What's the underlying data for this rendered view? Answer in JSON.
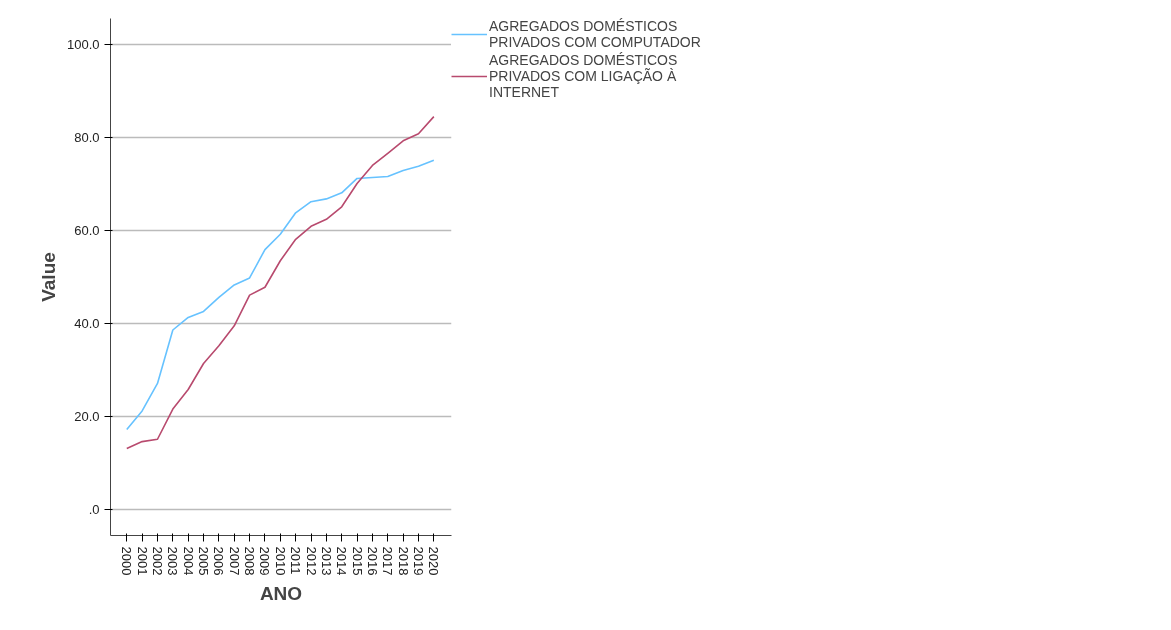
{
  "chart_data": {
    "type": "line",
    "xlabel": "ANO",
    "ylabel": "Value",
    "categories": [
      "2000",
      "2001",
      "2002",
      "2003",
      "2004",
      "2005",
      "2006",
      "2007",
      "2008",
      "2009",
      "2010",
      "2011",
      "2012",
      "2013",
      "2014",
      "2015",
      "2016",
      "2017",
      "2018",
      "2019",
      "2020"
    ],
    "series": [
      {
        "name": "AGREGADOS DOMÉSTICOS PRIVADOS COM COMPUTADOR",
        "color": "#66c2ff",
        "values": [
          17.2,
          21.2,
          27.1,
          38.6,
          41.3,
          42.6,
          45.6,
          48.3,
          49.8,
          55.9,
          59.2,
          63.8,
          66.2,
          66.8,
          68.1,
          71.2,
          71.4,
          71.6,
          72.9,
          73.8,
          75.1
        ]
      },
      {
        "name": "AGREGADOS DOMÉSTICOS PRIVADOS COM LIGAÇÃO À INTERNET",
        "color": "#b84a6e",
        "values": [
          13.1,
          14.6,
          15.1,
          21.6,
          25.8,
          31.4,
          35.2,
          39.5,
          46.1,
          47.8,
          53.5,
          58.1,
          60.9,
          62.4,
          65.1,
          70.1,
          74.0,
          76.6,
          79.3,
          80.8,
          84.5
        ]
      }
    ],
    "ylim": [
      -5.6,
      105.6
    ],
    "yticks": [
      {
        "value": 0,
        "label": ".0"
      },
      {
        "value": 20,
        "label": "20.0"
      },
      {
        "value": 40,
        "label": "40.0"
      },
      {
        "value": 60,
        "label": "60.0"
      },
      {
        "value": 80,
        "label": "80.0"
      },
      {
        "value": 100,
        "label": "100.0"
      }
    ],
    "grid": "y",
    "legend": "top right",
    "marker": "none",
    "line_style": "solid"
  }
}
